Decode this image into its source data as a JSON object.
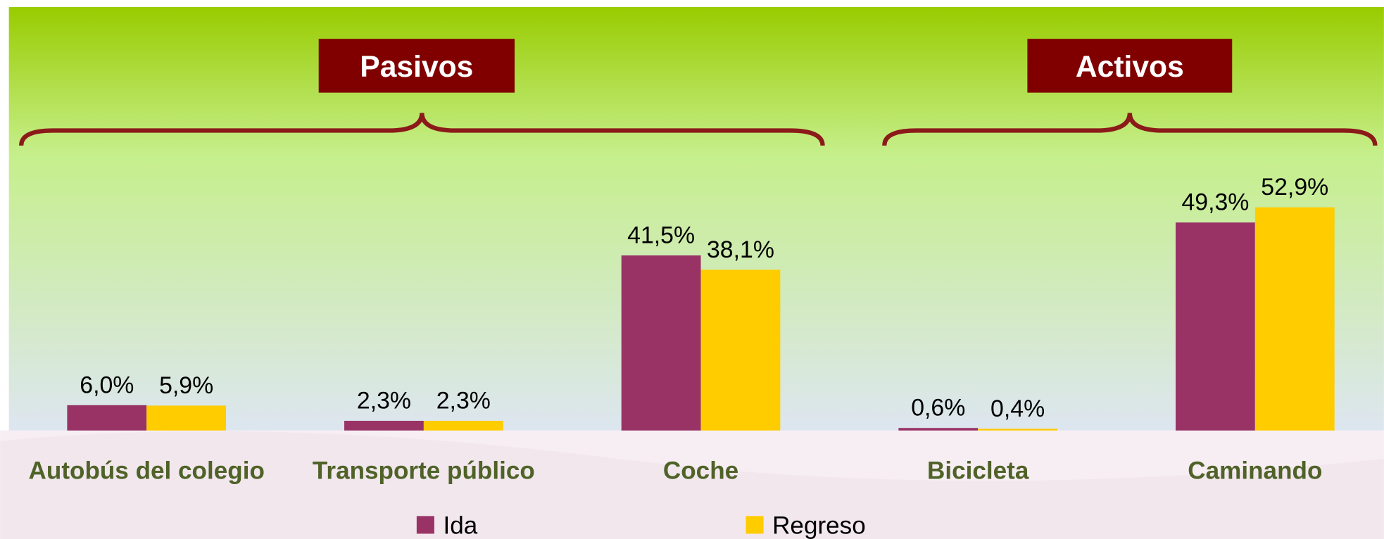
{
  "chart_data": {
    "type": "bar",
    "categories": [
      "Autobús del colegio",
      "Transporte público",
      "Coche",
      "Bicicleta",
      "Caminando"
    ],
    "series": [
      {
        "name": "Ida",
        "color": "#993366",
        "values": [
          6.0,
          2.3,
          41.5,
          0.6,
          49.3
        ],
        "value_labels": [
          "6,0%",
          "2,3%",
          "41,5%",
          "0,6%",
          "49,3%"
        ]
      },
      {
        "name": "Regreso",
        "color": "#ffcc00",
        "values": [
          5.9,
          2.3,
          38.1,
          0.4,
          52.9
        ],
        "value_labels": [
          "5,9%",
          "2,3%",
          "38,1%",
          "0,4%",
          "52,9%"
        ]
      }
    ],
    "annotations": [
      "Pasivos",
      "Activos"
    ],
    "legend": "bottom"
  }
}
